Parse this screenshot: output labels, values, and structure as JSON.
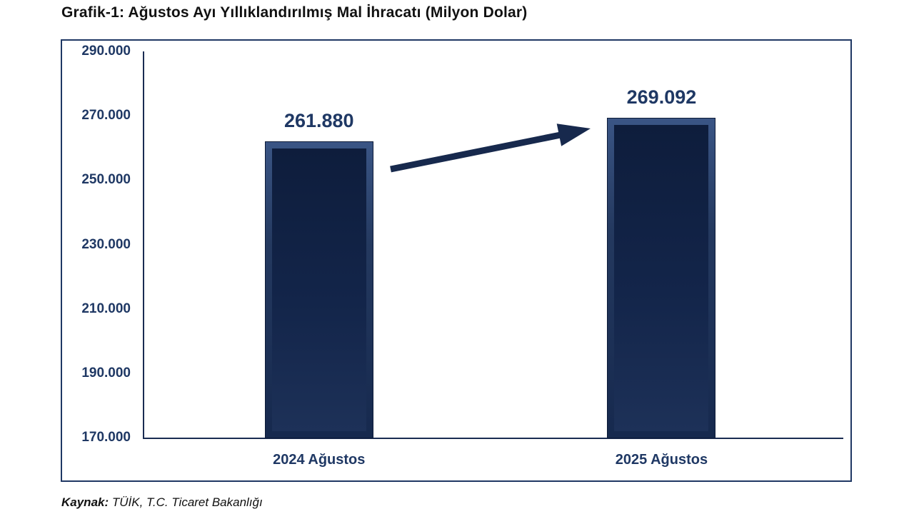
{
  "title": "Grafik-1: Ağustos Ayı Yıllıklandırılmış Mal İhracatı (Milyon Dolar)",
  "source": {
    "label": "Kaynak:",
    "text": " TÜİK, T.C. Ticaret Bakanlığı"
  },
  "chart_data": {
    "type": "bar",
    "title": "Grafik-1: Ağustos Ayı Yıllıklandırılmış Mal İhracatı (Milyon Dolar)",
    "categories": [
      "2024 Ağustos",
      "2025 Ağustos"
    ],
    "values": [
      261880,
      269092
    ],
    "value_labels": [
      "261.880",
      "269.092"
    ],
    "xlabel": "",
    "ylabel": "",
    "ylim": [
      170000,
      290000
    ],
    "ytick_step": 20000,
    "ytick_labels": [
      "170.000",
      "190.000",
      "210.000",
      "230.000",
      "250.000",
      "270.000",
      "290.000"
    ],
    "grid": false,
    "legend": "none",
    "bar_color": "#16294e",
    "accent_color": "#1f3864",
    "annotation": "arrow-from-2024-bar-to-2025-bar-indicating-increase"
  }
}
